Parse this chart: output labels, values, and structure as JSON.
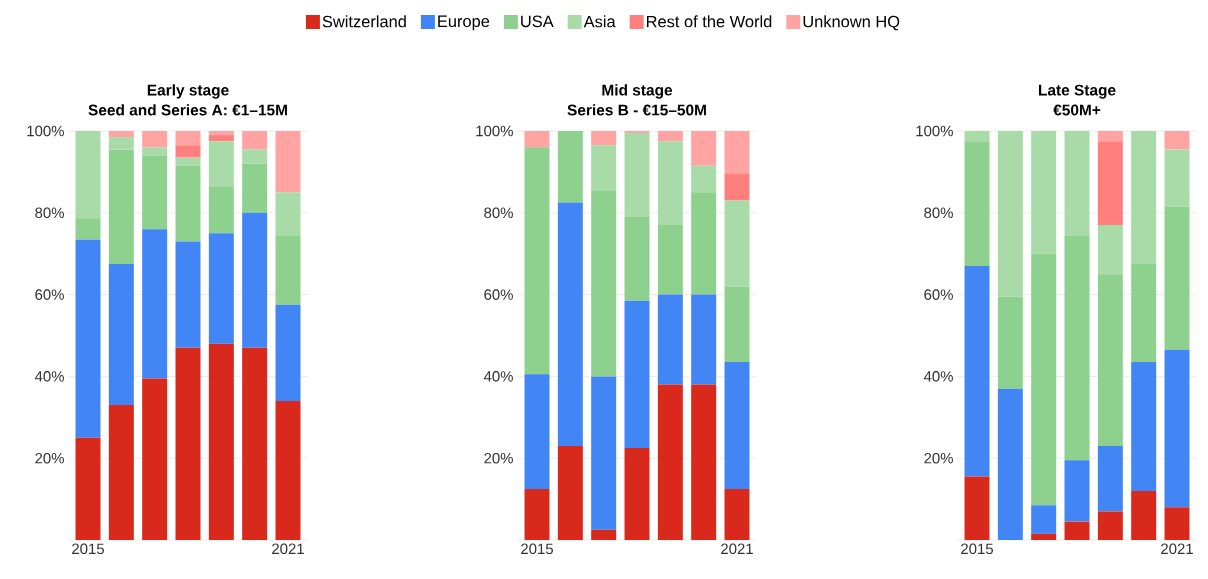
{
  "chart_data": [
    {
      "type": "bar",
      "stacked": true,
      "title": "Early stage",
      "subtitle": "Seed and Series A: €1–15M",
      "categories": [
        "2015",
        null,
        null,
        null,
        null,
        null,
        "2021"
      ],
      "ylim": [
        0,
        100
      ],
      "yticks": [
        {
          "value": 0,
          "label": null
        },
        {
          "value": 20,
          "label": "20%"
        },
        {
          "value": 40,
          "label": "40%"
        },
        {
          "value": 60,
          "label": "60%"
        },
        {
          "value": 80,
          "label": "80%"
        },
        {
          "value": 100,
          "label": "100%"
        }
      ],
      "grid": "y",
      "legend": "top",
      "series": [
        {
          "name": "Switzerland",
          "color": "#d9291c",
          "values": [
            25,
            33,
            39.5,
            47,
            48,
            47,
            34
          ]
        },
        {
          "name": "Europe",
          "color": "#4285f4",
          "values": [
            48.5,
            34.5,
            36.5,
            26,
            27,
            33,
            23.5
          ]
        },
        {
          "name": "USA",
          "color": "#8ed18f",
          "values": [
            5,
            28,
            18,
            18.5,
            11.5,
            12,
            17
          ]
        },
        {
          "name": "Asia",
          "color": "#a8dba8",
          "values": [
            21.5,
            3,
            2,
            2,
            11,
            3.5,
            10.5
          ]
        },
        {
          "name": "Rest of the World",
          "color": "#ff7f7f",
          "values": [
            0,
            0,
            0,
            3,
            1.5,
            0,
            0
          ]
        },
        {
          "name": "Unknown HQ",
          "color": "#ffa3a3",
          "values": [
            0,
            1.5,
            4,
            3.5,
            1,
            4.5,
            15
          ]
        }
      ]
    },
    {
      "type": "bar",
      "stacked": true,
      "title": "Mid stage",
      "subtitle": "Series B - €15–50M",
      "categories": [
        "2015",
        null,
        null,
        null,
        null,
        null,
        "2021"
      ],
      "ylim": [
        0,
        100
      ],
      "yticks": [
        {
          "value": 0,
          "label": null
        },
        {
          "value": 20,
          "label": "20%"
        },
        {
          "value": 40,
          "label": "40%"
        },
        {
          "value": 60,
          "label": "60%"
        },
        {
          "value": 80,
          "label": "80%"
        },
        {
          "value": 100,
          "label": "100%"
        }
      ],
      "grid": "y",
      "series": [
        {
          "color": "#d9291c",
          "values": [
            12.5,
            23,
            2.5,
            22.5,
            38,
            38,
            12.5
          ]
        },
        {
          "color": "#4285f4",
          "values": [
            28,
            59.5,
            37.5,
            36,
            22,
            22,
            31
          ]
        },
        {
          "color": "#8ed18f",
          "values": [
            55.5,
            17.5,
            45.5,
            20.5,
            17,
            25,
            18.5
          ]
        },
        {
          "color": "#a8dba8",
          "values": [
            0,
            0,
            11,
            20.5,
            20.5,
            6.5,
            21
          ]
        },
        {
          "color": "#ff7f7f",
          "values": [
            0,
            0,
            0,
            0,
            0,
            0,
            6.5
          ]
        },
        {
          "color": "#ffa3a3",
          "values": [
            4,
            0,
            3.5,
            0.5,
            2.5,
            8.5,
            10.5
          ]
        }
      ]
    },
    {
      "type": "bar",
      "stacked": true,
      "title": "Late Stage",
      "subtitle": "€50M+",
      "categories": [
        "2015",
        null,
        null,
        null,
        null,
        null,
        "2021"
      ],
      "ylim": [
        0,
        100
      ],
      "yticks": [
        {
          "value": 0,
          "label": null
        },
        {
          "value": 20,
          "label": "20%"
        },
        {
          "value": 40,
          "label": "40%"
        },
        {
          "value": 60,
          "label": "60%"
        },
        {
          "value": 80,
          "label": "80%"
        },
        {
          "value": 100,
          "label": "100%"
        }
      ],
      "grid": "y",
      "series": [
        {
          "color": "#d9291c",
          "values": [
            15.5,
            0,
            1.5,
            4.5,
            7,
            12,
            8
          ]
        },
        {
          "color": "#4285f4",
          "values": [
            51.5,
            37,
            7,
            15,
            16,
            31.5,
            38.5
          ]
        },
        {
          "color": "#8ed18f",
          "values": [
            30.5,
            22.5,
            61.5,
            55,
            42,
            24,
            35
          ]
        },
        {
          "color": "#a8dba8",
          "values": [
            2.5,
            40.5,
            30,
            25.5,
            12,
            32.5,
            14
          ]
        },
        {
          "color": "#ff7f7f",
          "values": [
            0,
            0,
            0,
            0,
            20.5,
            0,
            0
          ]
        },
        {
          "color": "#ffa3a3",
          "values": [
            0,
            0,
            0,
            0,
            2.5,
            0,
            4.5
          ]
        }
      ]
    }
  ]
}
